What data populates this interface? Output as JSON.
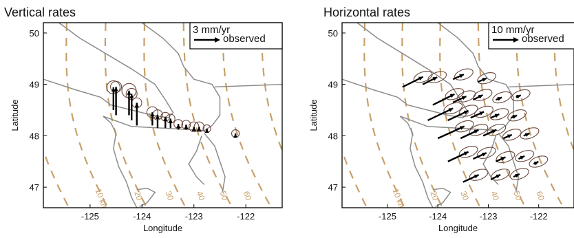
{
  "chart_data": [
    {
      "type": "vector-map",
      "title": "Vertical rates",
      "xlabel": "Longitude",
      "ylabel": "Latitude",
      "xlim": [
        -125.9,
        -121.3
      ],
      "ylim": [
        46.6,
        50.2
      ],
      "xticks": [
        "-125",
        "-124",
        "-123",
        "-122"
      ],
      "xtick_values": [
        -125,
        -124,
        -123,
        -122
      ],
      "yticks": [
        "47",
        "48",
        "49",
        "50"
      ],
      "ytick_values": [
        47,
        48,
        49,
        50
      ],
      "legend": {
        "scale_label": "3 mm/yr",
        "series_label": "observed",
        "placement": "top-right"
      },
      "contour_labels": [
        {
          "text": "10 km",
          "lon": -124.9,
          "lat": 46.95
        },
        {
          "text": "20",
          "lon": -124.15,
          "lat": 46.9
        },
        {
          "text": "30",
          "lon": -123.55,
          "lat": 46.9
        },
        {
          "text": "40",
          "lon": -122.95,
          "lat": 46.9
        },
        {
          "text": "50",
          "lon": -122.5,
          "lat": 46.9
        },
        {
          "text": "60",
          "lon": -122.05,
          "lat": 46.9
        }
      ],
      "vectors": [
        {
          "lon": -124.55,
          "lat": 48.5,
          "mm_yr": 6.0,
          "err": 1.2
        },
        {
          "lon": -124.5,
          "lat": 48.4,
          "mm_yr": 7.5,
          "err": 1.0
        },
        {
          "lon": -124.25,
          "lat": 48.4,
          "mm_yr": 6.5,
          "err": 1.3
        },
        {
          "lon": -124.2,
          "lat": 48.3,
          "mm_yr": 7.0,
          "err": 1.0
        },
        {
          "lon": -124.1,
          "lat": 48.2,
          "mm_yr": 6.0,
          "err": 0.9
        },
        {
          "lon": -123.8,
          "lat": 48.2,
          "mm_yr": 3.5,
          "err": 1.0
        },
        {
          "lon": -123.7,
          "lat": 48.15,
          "mm_yr": 3.5,
          "err": 0.9
        },
        {
          "lon": -123.55,
          "lat": 48.15,
          "mm_yr": 3.0,
          "err": 0.8
        },
        {
          "lon": -123.45,
          "lat": 48.15,
          "mm_yr": 2.5,
          "err": 0.8
        },
        {
          "lon": -123.3,
          "lat": 48.12,
          "mm_yr": 1.5,
          "err": 0.8
        },
        {
          "lon": -123.15,
          "lat": 48.12,
          "mm_yr": 1.3,
          "err": 0.8
        },
        {
          "lon": -123.0,
          "lat": 48.1,
          "mm_yr": 1.0,
          "err": 0.9
        },
        {
          "lon": -122.9,
          "lat": 48.1,
          "mm_yr": 1.0,
          "err": 0.9
        },
        {
          "lon": -122.75,
          "lat": 48.08,
          "mm_yr": 0.8,
          "err": 0.7
        },
        {
          "lon": -122.2,
          "lat": 48.0,
          "mm_yr": 0.6,
          "err": 0.7
        }
      ]
    },
    {
      "type": "vector-map",
      "title": "Horizontal rates",
      "xlabel": "Longitude",
      "ylabel": "Latitude",
      "xlim": [
        -125.9,
        -121.3
      ],
      "ylim": [
        46.6,
        50.2
      ],
      "xticks": [
        "-125",
        "-124",
        "-123",
        "-122"
      ],
      "xtick_values": [
        -125,
        -124,
        -123,
        -122
      ],
      "yticks": [
        "47",
        "48",
        "49",
        "50"
      ],
      "ytick_values": [
        47,
        48,
        49,
        50
      ],
      "legend": {
        "scale_label": "10 mm/yr",
        "series_label": "observed",
        "placement": "top-right"
      },
      "contour_labels": [
        {
          "text": "10 km",
          "lon": -124.9,
          "lat": 46.95
        },
        {
          "text": "20",
          "lon": -124.15,
          "lat": 46.9
        },
        {
          "text": "30",
          "lon": -123.55,
          "lat": 46.9
        },
        {
          "text": "40",
          "lon": -122.95,
          "lat": 46.9
        },
        {
          "text": "50",
          "lon": -122.5,
          "lat": 46.9
        },
        {
          "text": "60",
          "lon": -122.05,
          "lat": 46.9
        }
      ],
      "vectors": [
        {
          "lon": -124.7,
          "lat": 48.95,
          "ve": 8.5,
          "vn": 4.2
        },
        {
          "lon": -124.3,
          "lat": 49.0,
          "ve": 6.0,
          "vn": 3.0
        },
        {
          "lon": -123.7,
          "lat": 49.1,
          "ve": 4.5,
          "vn": 2.0
        },
        {
          "lon": -123.2,
          "lat": 49.05,
          "ve": 3.5,
          "vn": 1.5
        },
        {
          "lon": -124.1,
          "lat": 48.6,
          "ve": 9.0,
          "vn": 4.5
        },
        {
          "lon": -123.7,
          "lat": 48.65,
          "ve": 5.5,
          "vn": 2.5
        },
        {
          "lon": -123.3,
          "lat": 48.7,
          "ve": 4.0,
          "vn": 2.0
        },
        {
          "lon": -122.85,
          "lat": 48.7,
          "ve": 2.5,
          "vn": 1.0
        },
        {
          "lon": -122.45,
          "lat": 48.75,
          "ve": 2.0,
          "vn": 0.8
        },
        {
          "lon": -124.2,
          "lat": 48.3,
          "ve": 10.5,
          "vn": 5.0
        },
        {
          "lon": -123.8,
          "lat": 48.3,
          "ve": 8.5,
          "vn": 4.0
        },
        {
          "lon": -123.35,
          "lat": 48.35,
          "ve": 5.5,
          "vn": 2.5
        },
        {
          "lon": -122.95,
          "lat": 48.35,
          "ve": 3.5,
          "vn": 1.5
        },
        {
          "lon": -122.55,
          "lat": 48.35,
          "ve": 2.5,
          "vn": 1.0
        },
        {
          "lon": -124.0,
          "lat": 47.95,
          "ve": 11.0,
          "vn": 5.0
        },
        {
          "lon": -123.55,
          "lat": 47.95,
          "ve": 7.5,
          "vn": 3.5
        },
        {
          "lon": -123.1,
          "lat": 48.0,
          "ve": 5.5,
          "vn": 2.5
        },
        {
          "lon": -122.7,
          "lat": 47.95,
          "ve": 3.5,
          "vn": 1.5
        },
        {
          "lon": -122.3,
          "lat": 48.0,
          "ve": 2.5,
          "vn": 1.0
        },
        {
          "lon": -123.8,
          "lat": 47.5,
          "ve": 8.5,
          "vn": 4.0
        },
        {
          "lon": -123.3,
          "lat": 47.55,
          "ve": 5.5,
          "vn": 2.5
        },
        {
          "lon": -122.85,
          "lat": 47.5,
          "ve": 4.0,
          "vn": 1.8
        },
        {
          "lon": -122.4,
          "lat": 47.55,
          "ve": 2.5,
          "vn": 1.2
        },
        {
          "lon": -123.5,
          "lat": 47.1,
          "ve": 6.5,
          "vn": 3.0
        },
        {
          "lon": -122.95,
          "lat": 47.15,
          "ve": 4.0,
          "vn": 2.0
        },
        {
          "lon": -122.5,
          "lat": 47.2,
          "ve": 2.5,
          "vn": 1.2
        },
        {
          "lon": -122.1,
          "lat": 47.45,
          "ve": 2.0,
          "vn": 1.0
        }
      ]
    }
  ],
  "colors": {
    "contour": "#c8a06a",
    "coast": "#8c8c8c",
    "arrow": "#000000",
    "ellipse": "#6b4a3e"
  }
}
